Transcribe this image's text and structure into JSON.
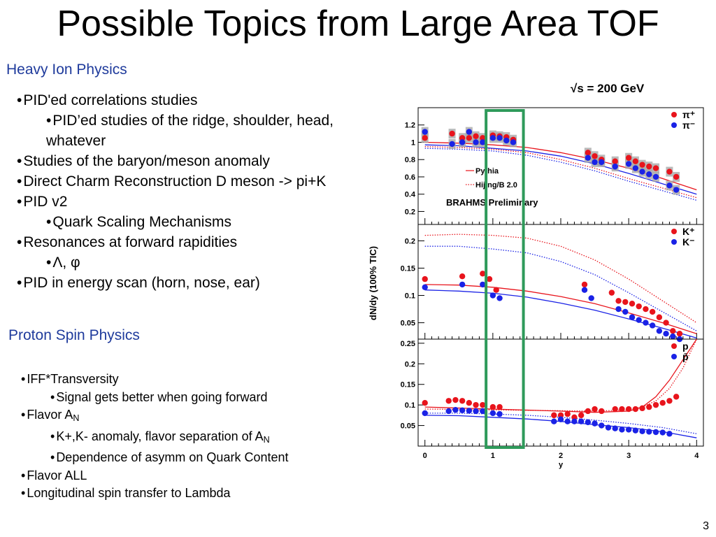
{
  "slide": {
    "title": "Possible Topics from Large Area TOF",
    "page_number": "3",
    "sections": [
      {
        "heading": "Heavy Ion Physics",
        "bullets": [
          {
            "level": 1,
            "text": "PID'ed correlations studies"
          },
          {
            "level": 2,
            "text": "PID’ed studies of the ridge, shoulder, head, whatever"
          },
          {
            "level": 1,
            "text": "Studies of the baryon/meson anomaly"
          },
          {
            "level": 1,
            "text": "Direct Charm Reconstruction D meson -> pi+K"
          },
          {
            "level": 1,
            "text": "PID v2"
          },
          {
            "level": 2,
            "text": "Quark Scaling Mechanisms"
          },
          {
            "level": 1,
            "text": "Resonances at forward rapidities"
          },
          {
            "level": 2,
            "text": "Λ, φ"
          },
          {
            "level": 1,
            "text": "PID in energy scan (horn, nose, ear)"
          }
        ]
      },
      {
        "heading": "Proton Spin Physics",
        "bullets": [
          {
            "level": 1,
            "text": "IFF*Transversity"
          },
          {
            "level": 2,
            "text": "Signal gets better when going forward"
          },
          {
            "level": 1,
            "text": "Flavor A",
            "sub": "N"
          },
          {
            "level": 2,
            "text": "K+,K- anomaly, flavor separation of A",
            "sub": "N"
          },
          {
            "level": 2,
            "text": "Dependence of asymm on Quark Content"
          },
          {
            "level": 1,
            "text": "Flavor ALL"
          },
          {
            "level": 1,
            "text": "Longitudinal spin transfer to Lambda"
          }
        ]
      }
    ]
  },
  "colors": {
    "title": "#000000",
    "section_heading": "#1f3b9c",
    "red": "#e8141c",
    "blue": "#1a22e6",
    "highlight": "#2e9a5a",
    "band": "#a9a9a9"
  },
  "chart_data": {
    "type": "scatter",
    "energy_label": "√s = 200 GeV",
    "ylabel": "dN/dy (100% TIC)",
    "xlabel": "y",
    "xlim": [
      -0.1,
      4.1
    ],
    "x_ticks": [
      "0",
      "1",
      "2",
      "3",
      "4"
    ],
    "highlight_band": [
      0.9,
      1.45
    ],
    "panels": [
      {
        "id": "pion",
        "ylim": [
          0.05,
          1.4
        ],
        "y_ticks": [
          "0.2",
          "0.4",
          "0.6",
          "0.8",
          "1",
          "1.2"
        ],
        "y_tick_values": [
          0.2,
          0.4,
          0.6,
          0.8,
          1.0,
          1.2
        ],
        "legend": [
          {
            "label": "π⁺",
            "color": "red"
          },
          {
            "label": "π⁻",
            "color": "blue"
          }
        ],
        "model_legend": [
          {
            "label": "Pythia",
            "style": "solid"
          },
          {
            "label": "Hijing/B 2.0",
            "style": "dotted"
          }
        ],
        "annotation": "BRAHMS Preliminary",
        "series": [
          {
            "name": "π⁺",
            "color": "red",
            "x": [
              0.0,
              0.4,
              0.55,
              0.65,
              0.75,
              0.85,
              1.0,
              1.1,
              1.2,
              1.3,
              2.4,
              2.5,
              2.6,
              2.8,
              3.0,
              3.1,
              3.2,
              3.3,
              3.4,
              3.6,
              3.7
            ],
            "y": [
              1.05,
              1.1,
              1.05,
              1.05,
              1.07,
              1.05,
              1.08,
              1.07,
              1.06,
              1.03,
              0.88,
              0.84,
              0.8,
              0.78,
              0.82,
              0.78,
              0.74,
              0.72,
              0.7,
              0.66,
              0.6
            ]
          },
          {
            "name": "π⁻",
            "color": "blue",
            "x": [
              0.0,
              0.4,
              0.55,
              0.65,
              0.75,
              0.85,
              1.0,
              1.1,
              1.2,
              1.3,
              2.4,
              2.5,
              2.6,
              2.8,
              3.0,
              3.1,
              3.2,
              3.3,
              3.4,
              3.6,
              3.7
            ],
            "y": [
              1.12,
              0.98,
              1.0,
              1.12,
              1.0,
              1.0,
              1.05,
              1.05,
              1.02,
              1.0,
              0.82,
              0.77,
              0.77,
              0.72,
              0.75,
              0.7,
              0.66,
              0.63,
              0.6,
              0.5,
              0.45
            ]
          }
        ],
        "models": [
          {
            "name": "Pythia",
            "color": "red",
            "style": "solid",
            "x": [
              0,
              0.5,
              1,
              1.5,
              2,
              2.5,
              3,
              3.5,
              4
            ],
            "y": [
              1.0,
              0.99,
              0.97,
              0.94,
              0.88,
              0.8,
              0.7,
              0.58,
              0.45
            ]
          },
          {
            "name": "Pythia",
            "color": "blue",
            "style": "solid",
            "x": [
              0,
              0.5,
              1,
              1.5,
              2,
              2.5,
              3,
              3.5,
              4
            ],
            "y": [
              0.97,
              0.96,
              0.93,
              0.9,
              0.84,
              0.75,
              0.64,
              0.52,
              0.4
            ]
          },
          {
            "name": "Hijing/B 2.0",
            "color": "red",
            "style": "dotted",
            "x": [
              0,
              0.5,
              1,
              1.5,
              2,
              2.5,
              3,
              3.5,
              4
            ],
            "y": [
              0.95,
              0.94,
              0.92,
              0.88,
              0.8,
              0.7,
              0.58,
              0.47,
              0.36
            ]
          },
          {
            "name": "Hijing/B 2.0",
            "color": "blue",
            "style": "dotted",
            "x": [
              0,
              0.5,
              1,
              1.5,
              2,
              2.5,
              3,
              3.5,
              4
            ],
            "y": [
              0.93,
              0.92,
              0.9,
              0.85,
              0.77,
              0.67,
              0.55,
              0.44,
              0.33
            ]
          }
        ]
      },
      {
        "id": "kaon",
        "ylim": [
          0.02,
          0.23
        ],
        "y_ticks": [
          "0.05",
          "0.1",
          "0.15",
          "0.2"
        ],
        "y_tick_values": [
          0.05,
          0.1,
          0.15,
          0.2
        ],
        "legend": [
          {
            "label": "K⁺",
            "color": "red"
          },
          {
            "label": "K⁻",
            "color": "blue"
          }
        ],
        "series": [
          {
            "name": "K⁺",
            "color": "red",
            "x": [
              0.0,
              0.55,
              0.85,
              0.95,
              1.05,
              2.35,
              2.75,
              2.85,
              2.95,
              3.05,
              3.15,
              3.25,
              3.35,
              3.45,
              3.55,
              3.65,
              3.75
            ],
            "y": [
              0.13,
              0.135,
              0.14,
              0.13,
              0.11,
              0.12,
              0.105,
              0.09,
              0.088,
              0.085,
              0.08,
              0.075,
              0.07,
              0.06,
              0.05,
              0.035,
              0.03
            ]
          },
          {
            "name": "K⁻",
            "color": "blue",
            "x": [
              0.0,
              0.55,
              0.85,
              1.0,
              1.1,
              2.35,
              2.45,
              2.85,
              2.95,
              3.05,
              3.15,
              3.25,
              3.35,
              3.45,
              3.55,
              3.65,
              3.75
            ],
            "y": [
              0.115,
              0.12,
              0.12,
              0.1,
              0.095,
              0.11,
              0.095,
              0.075,
              0.07,
              0.06,
              0.055,
              0.05,
              0.045,
              0.035,
              0.03,
              0.025,
              0.02
            ]
          }
        ],
        "models": [
          {
            "name": "Pythia",
            "color": "red",
            "style": "solid",
            "x": [
              0,
              0.5,
              1,
              1.5,
              2,
              2.5,
              3,
              3.5,
              4
            ],
            "y": [
              0.12,
              0.119,
              0.115,
              0.108,
              0.098,
              0.085,
              0.068,
              0.05,
              0.03
            ]
          },
          {
            "name": "Pythia",
            "color": "blue",
            "style": "solid",
            "x": [
              0,
              0.5,
              1,
              1.5,
              2,
              2.5,
              3,
              3.5,
              4
            ],
            "y": [
              0.11,
              0.108,
              0.104,
              0.097,
              0.086,
              0.073,
              0.057,
              0.04,
              0.022
            ]
          },
          {
            "name": "Hijing/B 2.0",
            "color": "red",
            "style": "dotted",
            "x": [
              0,
              0.5,
              1,
              1.5,
              2,
              2.5,
              3,
              3.5,
              4
            ],
            "y": [
              0.21,
              0.212,
              0.21,
              0.205,
              0.19,
              0.165,
              0.13,
              0.09,
              0.05
            ]
          },
          {
            "name": "Hijing/B 2.0",
            "color": "blue",
            "style": "dotted",
            "x": [
              0,
              0.5,
              1,
              1.5,
              2,
              2.5,
              3,
              3.5,
              4
            ],
            "y": [
              0.19,
              0.19,
              0.185,
              0.178,
              0.162,
              0.138,
              0.105,
              0.07,
              0.035
            ]
          }
        ]
      },
      {
        "id": "proton",
        "ylim": [
          0.0,
          0.26
        ],
        "y_ticks": [
          "0.05",
          "0.1",
          "0.15",
          "0.2",
          "0.25"
        ],
        "y_tick_values": [
          0.05,
          0.1,
          0.15,
          0.2,
          0.25
        ],
        "legend": [
          {
            "label": "p",
            "color": "red"
          },
          {
            "label": "p̄",
            "color": "blue"
          }
        ],
        "series": [
          {
            "name": "p",
            "color": "red",
            "x": [
              0.0,
              0.35,
              0.45,
              0.55,
              0.65,
              0.75,
              0.85,
              1.0,
              1.1,
              1.9,
              2.0,
              2.1,
              2.2,
              2.3,
              2.4,
              2.5,
              2.6,
              2.8,
              2.9,
              3.0,
              3.1,
              3.2,
              3.3,
              3.4,
              3.5,
              3.6,
              3.7
            ],
            "y": [
              0.105,
              0.11,
              0.112,
              0.11,
              0.105,
              0.1,
              0.1,
              0.095,
              0.095,
              0.075,
              0.075,
              0.078,
              0.07,
              0.075,
              0.085,
              0.09,
              0.085,
              0.09,
              0.09,
              0.09,
              0.09,
              0.092,
              0.095,
              0.1,
              0.105,
              0.11,
              0.12
            ]
          },
          {
            "name": "p̄",
            "color": "blue",
            "x": [
              0.0,
              0.35,
              0.45,
              0.55,
              0.65,
              0.75,
              0.85,
              1.0,
              1.1,
              1.9,
              2.0,
              2.1,
              2.2,
              2.3,
              2.4,
              2.5,
              2.6,
              2.7,
              2.8,
              2.9,
              3.0,
              3.1,
              3.2,
              3.3,
              3.4,
              3.5,
              3.6
            ],
            "y": [
              0.08,
              0.085,
              0.088,
              0.087,
              0.086,
              0.085,
              0.085,
              0.08,
              0.078,
              0.06,
              0.065,
              0.06,
              0.06,
              0.06,
              0.058,
              0.055,
              0.05,
              0.045,
              0.043,
              0.04,
              0.04,
              0.038,
              0.036,
              0.035,
              0.034,
              0.033,
              0.03
            ]
          }
        ],
        "models": [
          {
            "name": "Pythia",
            "color": "red",
            "style": "solid",
            "x": [
              0,
              1,
              2,
              2.5,
              3,
              3.2,
              3.4,
              3.6,
              3.8,
              4.0
            ],
            "y": [
              0.095,
              0.09,
              0.085,
              0.082,
              0.085,
              0.095,
              0.12,
              0.16,
              0.21,
              0.26
            ]
          },
          {
            "name": "Pythia",
            "color": "blue",
            "style": "solid",
            "x": [
              0,
              0.5,
              1,
              1.5,
              2,
              2.5,
              3,
              3.5,
              4
            ],
            "y": [
              0.075,
              0.074,
              0.07,
              0.066,
              0.06,
              0.052,
              0.045,
              0.035,
              0.02
            ]
          },
          {
            "name": "Hijing/B 2.0",
            "color": "red",
            "style": "dotted",
            "x": [
              0,
              1,
              2,
              2.5,
              3,
              3.2,
              3.4,
              3.6,
              3.8,
              4.0
            ],
            "y": [
              0.09,
              0.088,
              0.086,
              0.085,
              0.088,
              0.095,
              0.11,
              0.14,
              0.19,
              0.26
            ]
          },
          {
            "name": "Hijing/B 2.0",
            "color": "blue",
            "style": "dotted",
            "x": [
              0,
              0.5,
              1,
              1.5,
              2,
              2.5,
              3,
              3.5,
              4
            ],
            "y": [
              0.08,
              0.08,
              0.078,
              0.075,
              0.07,
              0.063,
              0.055,
              0.045,
              0.03
            ]
          }
        ]
      }
    ]
  }
}
